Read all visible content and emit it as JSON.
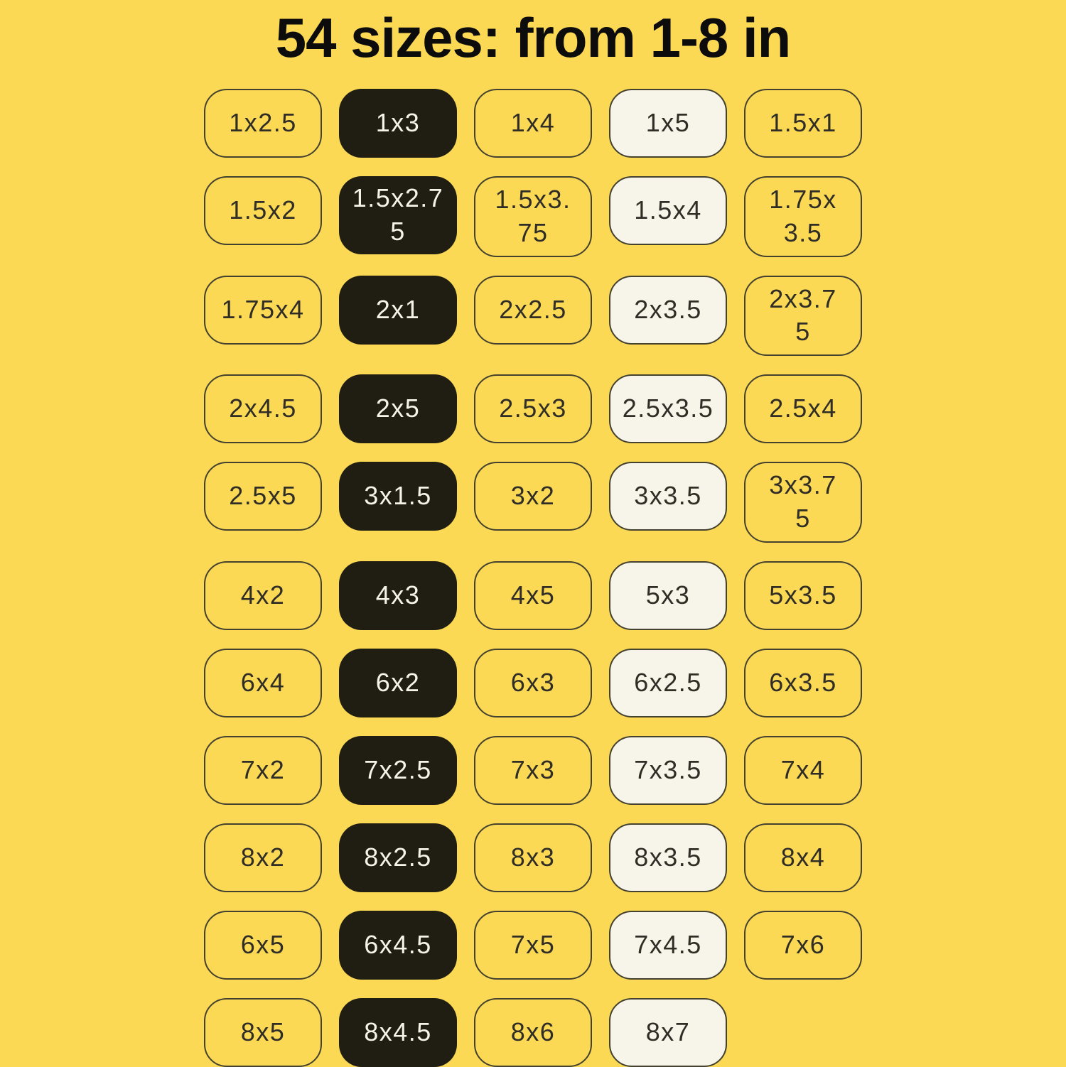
{
  "title": "54 sizes: from 1-8 in",
  "colors": {
    "background": "#fbd955",
    "tile_black_fill": "#201e12",
    "tile_cream_fill": "#f7f5e9",
    "tile_outline": "#44412f",
    "text_dark": "#2f2d26",
    "text_light": "#f6f4ea"
  },
  "grid": {
    "tiles": [
      {
        "label": "1x2.5",
        "variant": "outline"
      },
      {
        "label": "1x3",
        "variant": "black"
      },
      {
        "label": "1x4",
        "variant": "outline"
      },
      {
        "label": "1x5",
        "variant": "cream"
      },
      {
        "label": "1.5x1",
        "variant": "outline"
      },
      {
        "label": "1.5x2",
        "variant": "outline"
      },
      {
        "label": "1.5x2.7\n5",
        "variant": "black"
      },
      {
        "label": "1.5x3.\n75",
        "variant": "outline"
      },
      {
        "label": "1.5x4",
        "variant": "cream"
      },
      {
        "label": "1.75x\n3.5",
        "variant": "outline"
      },
      {
        "label": "1.75x4",
        "variant": "outline"
      },
      {
        "label": "2x1",
        "variant": "black"
      },
      {
        "label": "2x2.5",
        "variant": "outline"
      },
      {
        "label": "2x3.5",
        "variant": "cream"
      },
      {
        "label": "2x3.7\n5",
        "variant": "outline"
      },
      {
        "label": "2x4.5",
        "variant": "outline"
      },
      {
        "label": "2x5",
        "variant": "black"
      },
      {
        "label": "2.5x3",
        "variant": "outline"
      },
      {
        "label": "2.5x3.5",
        "variant": "cream"
      },
      {
        "label": "2.5x4",
        "variant": "outline"
      },
      {
        "label": "2.5x5",
        "variant": "outline"
      },
      {
        "label": "3x1.5",
        "variant": "black"
      },
      {
        "label": "3x2",
        "variant": "outline"
      },
      {
        "label": "3x3.5",
        "variant": "cream"
      },
      {
        "label": "3x3.7\n5",
        "variant": "outline"
      },
      {
        "label": "4x2",
        "variant": "outline"
      },
      {
        "label": "4x3",
        "variant": "black"
      },
      {
        "label": "4x5",
        "variant": "outline"
      },
      {
        "label": "5x3",
        "variant": "cream"
      },
      {
        "label": "5x3.5",
        "variant": "outline"
      },
      {
        "label": "6x4",
        "variant": "outline"
      },
      {
        "label": "6x2",
        "variant": "black"
      },
      {
        "label": "6x3",
        "variant": "outline"
      },
      {
        "label": "6x2.5",
        "variant": "cream"
      },
      {
        "label": "6x3.5",
        "variant": "outline"
      },
      {
        "label": "7x2",
        "variant": "outline"
      },
      {
        "label": "7x2.5",
        "variant": "black"
      },
      {
        "label": "7x3",
        "variant": "outline"
      },
      {
        "label": "7x3.5",
        "variant": "cream"
      },
      {
        "label": "7x4",
        "variant": "outline"
      },
      {
        "label": "8x2",
        "variant": "outline"
      },
      {
        "label": "8x2.5",
        "variant": "black"
      },
      {
        "label": "8x3",
        "variant": "outline"
      },
      {
        "label": "8x3.5",
        "variant": "cream"
      },
      {
        "label": "8x4",
        "variant": "outline"
      },
      {
        "label": "6x5",
        "variant": "outline"
      },
      {
        "label": "6x4.5",
        "variant": "black"
      },
      {
        "label": "7x5",
        "variant": "outline"
      },
      {
        "label": "7x4.5",
        "variant": "cream"
      },
      {
        "label": "7x6",
        "variant": "outline"
      },
      {
        "label": "8x5",
        "variant": "outline"
      },
      {
        "label": "8x4.5",
        "variant": "black"
      },
      {
        "label": "8x6",
        "variant": "outline"
      },
      {
        "label": "8x7",
        "variant": "cream"
      }
    ]
  }
}
